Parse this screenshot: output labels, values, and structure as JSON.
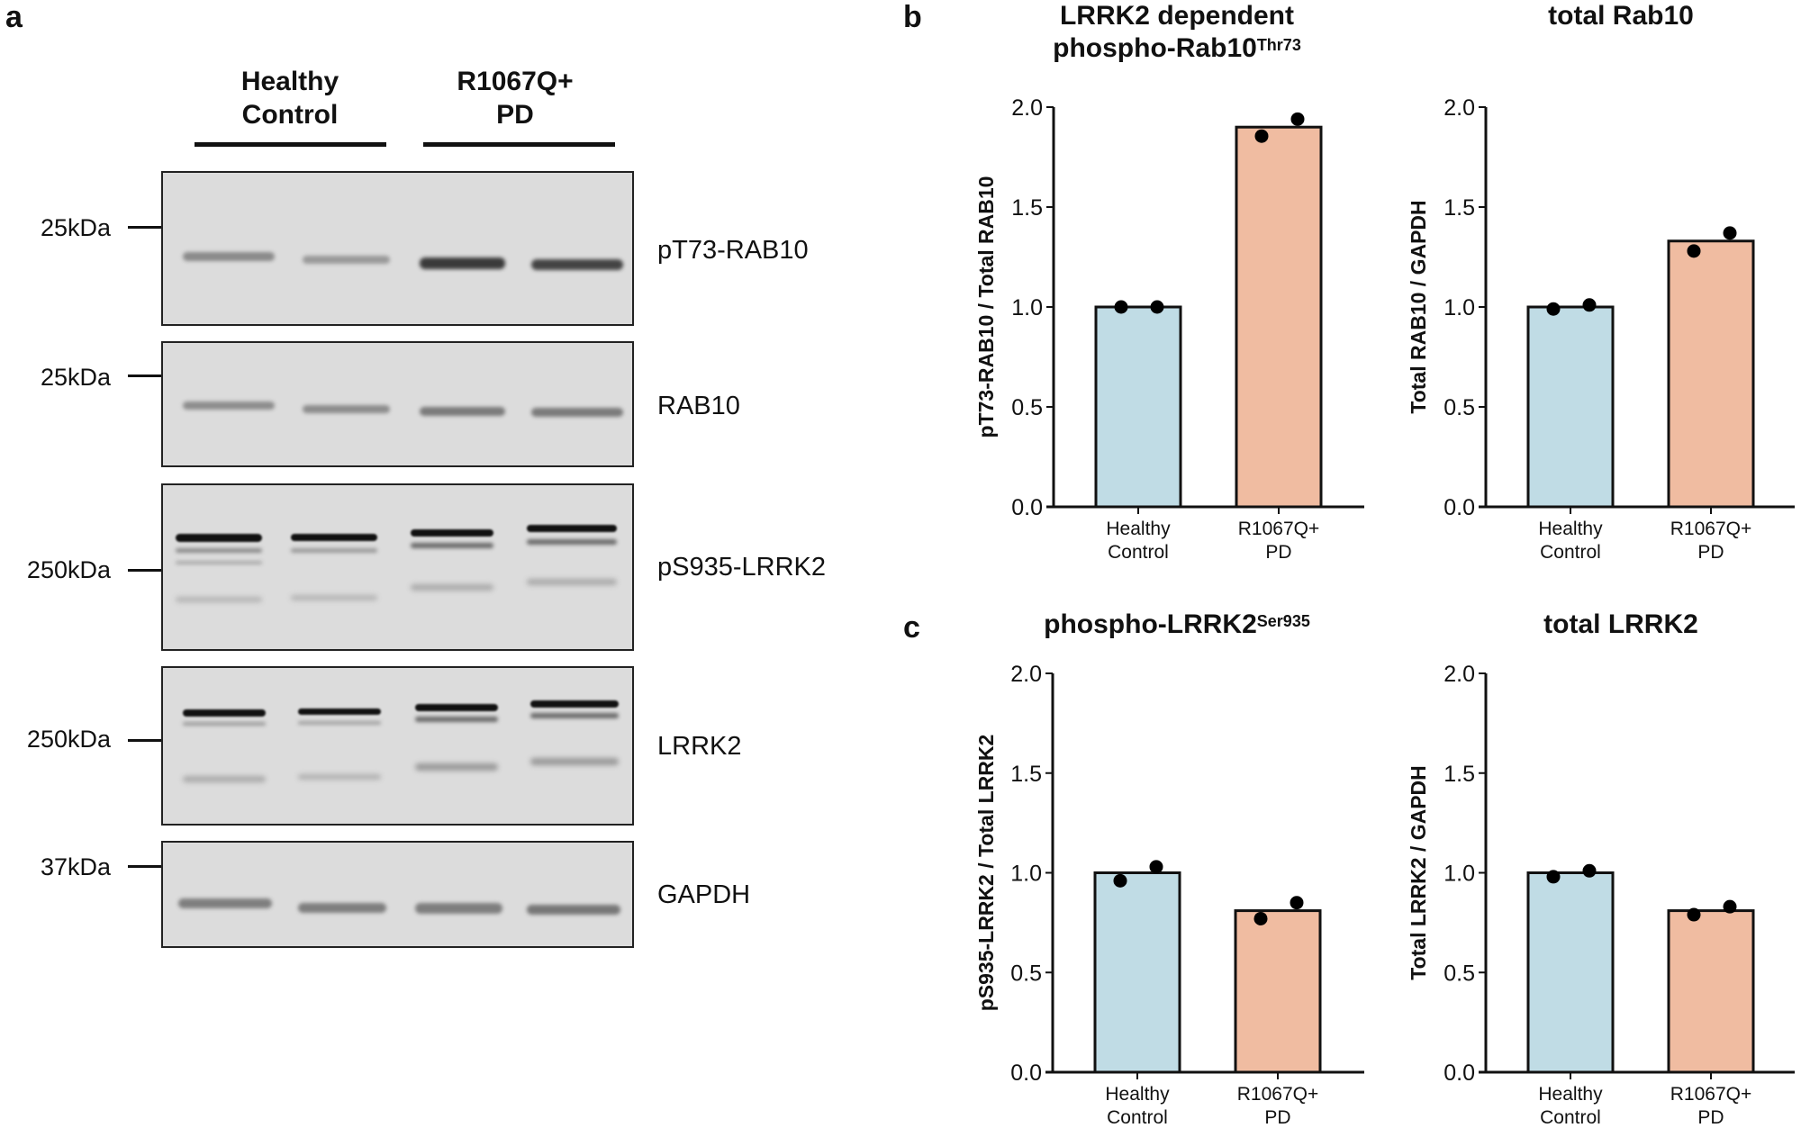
{
  "panels": {
    "a": {
      "letter": "a"
    },
    "b": {
      "letter": "b"
    },
    "c": {
      "letter": "c"
    }
  },
  "blot": {
    "groups": [
      {
        "line1": "Healthy",
        "line2": "Control"
      },
      {
        "line1": "R1067Q+",
        "line2": "PD"
      }
    ],
    "rows": [
      {
        "name": "pT73-RAB10",
        "marker": "25kDa"
      },
      {
        "name": "RAB10",
        "marker": "25kDa"
      },
      {
        "name": "pS935-LRRK2",
        "marker": "250kDa"
      },
      {
        "name": "LRRK2",
        "marker": "250kDa"
      },
      {
        "name": "GAPDH",
        "marker": "37kDa"
      }
    ]
  },
  "colors": {
    "healthy": "#c0dce5",
    "pd": "#f0bca1",
    "axis": "#111111",
    "blot_bg": "#dcdcdc"
  },
  "chart_data": [
    {
      "type": "bar",
      "panel": "b",
      "title": "LRRK2 dependent phospho-Rab10",
      "title_line1": "LRRK2 dependent",
      "title_line2": "phospho-Rab10",
      "title_sup": "Thr73",
      "ylabel": "pT73-RAB10 / Total RAB10",
      "categories": [
        "Healthy Control",
        "R1067Q+ PD"
      ],
      "category_lines": [
        [
          "Healthy",
          "Control"
        ],
        [
          "R1067Q+",
          "PD"
        ]
      ],
      "values": [
        1.0,
        1.9
      ],
      "points": [
        [
          1.0,
          1.0
        ],
        [
          1.855,
          1.94
        ]
      ],
      "ylim": [
        0,
        2.0
      ],
      "yticks": [
        "0.0",
        "0.5",
        "1.0",
        "1.5",
        "2.0"
      ],
      "grid": false
    },
    {
      "type": "bar",
      "panel": "b",
      "title": "total Rab10",
      "title_line1": "total Rab10",
      "title_line2": "",
      "title_sup": "",
      "ylabel": "Total RAB10 / GAPDH",
      "categories": [
        "Healthy Control",
        "R1067Q+ PD"
      ],
      "category_lines": [
        [
          "Healthy",
          "Control"
        ],
        [
          "R1067Q+",
          "PD"
        ]
      ],
      "values": [
        1.0,
        1.33
      ],
      "points": [
        [
          0.99,
          1.01
        ],
        [
          1.28,
          1.37
        ]
      ],
      "ylim": [
        0,
        2.0
      ],
      "yticks": [
        "0.0",
        "0.5",
        "1.0",
        "1.5",
        "2.0"
      ],
      "grid": false
    },
    {
      "type": "bar",
      "panel": "c",
      "title": "phospho-LRRK2",
      "title_line1": "phospho-LRRK2",
      "title_line2": "",
      "title_sup": "Ser935",
      "ylabel": "pS935-LRRK2 / Total LRRK2",
      "categories": [
        "Healthy Control",
        "R1067Q+ PD"
      ],
      "category_lines": [
        [
          "Healthy",
          "Control"
        ],
        [
          "R1067Q+",
          "PD"
        ]
      ],
      "values": [
        1.0,
        0.81
      ],
      "points": [
        [
          0.96,
          1.03
        ],
        [
          0.77,
          0.85
        ]
      ],
      "ylim": [
        0,
        2.0
      ],
      "yticks": [
        "0.0",
        "0.5",
        "1.0",
        "1.5",
        "2.0"
      ],
      "grid": false
    },
    {
      "type": "bar",
      "panel": "c",
      "title": "total LRRK2",
      "title_line1": "total LRRK2",
      "title_line2": "",
      "title_sup": "",
      "ylabel": "Total LRRK2 / GAPDH",
      "categories": [
        "Healthy Control",
        "R1067Q+ PD"
      ],
      "category_lines": [
        [
          "Healthy",
          "Control"
        ],
        [
          "R1067Q+",
          "PD"
        ]
      ],
      "values": [
        1.0,
        0.81
      ],
      "points": [
        [
          0.98,
          1.01
        ],
        [
          0.79,
          0.83
        ]
      ],
      "ylim": [
        0,
        2.0
      ],
      "yticks": [
        "0.0",
        "0.5",
        "1.0",
        "1.5",
        "2.0"
      ],
      "grid": false
    }
  ]
}
